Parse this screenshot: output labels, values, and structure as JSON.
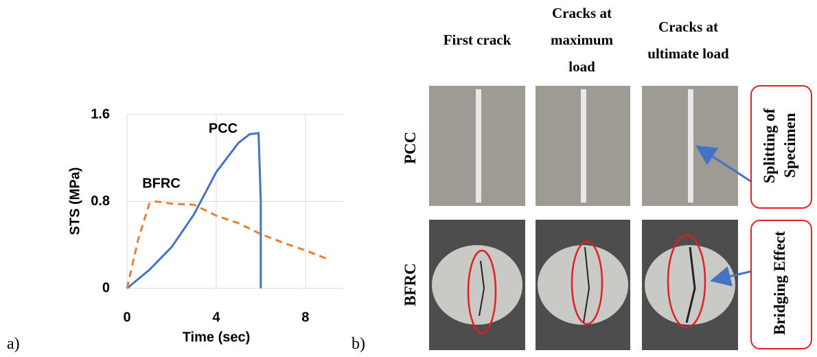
{
  "chart_data": {
    "type": "line",
    "x_label": "Time (sec)",
    "y_label": "STS (MPa)",
    "xlim": [
      0,
      9.7
    ],
    "xticks": [
      0,
      4,
      8
    ],
    "ylim": [
      0,
      1.6
    ],
    "yticks": [
      0,
      0.8,
      1.6
    ],
    "grid": true,
    "series": [
      {
        "name": "PCC",
        "color": "#4472c4",
        "dash": false,
        "x": [
          0,
          1,
          2,
          3,
          4,
          5,
          5.5,
          5.9,
          6.0,
          6.0
        ],
        "values": [
          0,
          0.17,
          0.38,
          0.68,
          1.07,
          1.34,
          1.42,
          1.43,
          0.8,
          0
        ]
      },
      {
        "name": "BFRC",
        "color": "#ed7d31",
        "dash": true,
        "x": [
          0,
          0.5,
          1.0,
          1.3,
          2,
          3,
          4,
          5,
          6,
          7,
          8,
          9
        ],
        "values": [
          0,
          0.45,
          0.78,
          0.8,
          0.78,
          0.77,
          0.67,
          0.6,
          0.5,
          0.42,
          0.35,
          0.27
        ]
      }
    ]
  },
  "figure": {
    "panel_labels": [
      "a)",
      "b)"
    ],
    "columns": [
      "First crack",
      "Cracks at maximum load",
      "Cracks at ultimate load"
    ],
    "rows": [
      "PCC",
      "BFRC"
    ],
    "callouts": [
      "Splitting of Specimen",
      "Bridging Effect"
    ]
  }
}
